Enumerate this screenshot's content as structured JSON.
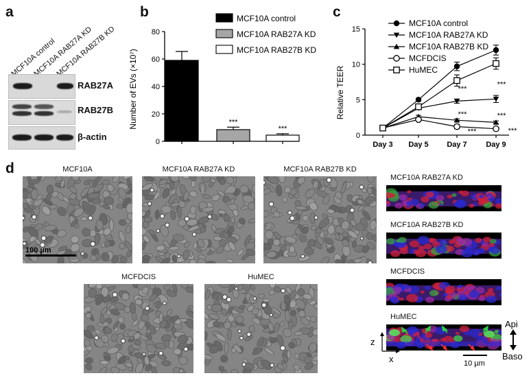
{
  "panels": {
    "a": "a",
    "b": "b",
    "c": "c",
    "d": "d"
  },
  "panel_a": {
    "lanes": [
      "MCF10A control",
      "MCF10A RAB27A KD",
      "MCF10A RAB27B KD"
    ],
    "blots": [
      "RAB27A",
      "RAB27B",
      "β-actin"
    ]
  },
  "panel_b": {
    "legend": [
      "MCF10A control",
      "MCF10A RAB27A KD",
      "MCF10A RAB27B KD"
    ],
    "ylabel": "Number of EVs (×10⁷)",
    "yticks": [
      "0",
      "20",
      "40",
      "60",
      "80"
    ],
    "sig": [
      "***",
      "***"
    ],
    "colors": [
      "#000000",
      "#a6a6a6",
      "#ffffff"
    ]
  },
  "panel_c": {
    "legend": [
      "MCF10A control",
      "MCF10A RAB27A KD",
      "MCF10A RAB27B KD",
      "MCFDCIS",
      "HuMEC"
    ],
    "ylabel": "Relative TEER",
    "yticks": [
      "0",
      "5",
      "10",
      "15"
    ],
    "sig": [
      "***",
      "***",
      "***",
      "***",
      "***",
      "***"
    ]
  },
  "chart_data": [
    {
      "type": "bar",
      "categories": [
        "MCF10A control",
        "MCF10A RAB27A KD",
        "MCF10A RAB27B KD"
      ],
      "values": [
        59,
        8.5,
        4.5
      ],
      "errors": [
        6.5,
        1.8,
        1.0
      ],
      "ylabel": "Number of EVs (×10⁷)",
      "ylim": [
        0,
        80
      ],
      "legend": "top-right"
    },
    {
      "type": "line",
      "categories": [
        "Day 3",
        "Day 5",
        "Day 7",
        "Day 9"
      ],
      "series": [
        {
          "name": "MCF10A control",
          "values": [
            1.0,
            5.0,
            9.7,
            12.0
          ],
          "errors": [
            0.1,
            0.2,
            0.6,
            0.7
          ],
          "marker": "circle-filled"
        },
        {
          "name": "MCF10A RAB27A KD",
          "values": [
            1.0,
            3.8,
            4.8,
            5.1
          ],
          "errors": [
            0.1,
            0.2,
            0.3,
            0.5
          ],
          "marker": "triangle-down"
        },
        {
          "name": "MCF10A RAB27B KD",
          "values": [
            1.0,
            2.6,
            2.1,
            1.8
          ],
          "errors": [
            0.1,
            0.2,
            0.2,
            0.2
          ],
          "marker": "triangle-up"
        },
        {
          "name": "MCFDCIS",
          "values": [
            1.0,
            2.2,
            1.2,
            0.9
          ],
          "errors": [
            0.1,
            0.2,
            0.3,
            0.2
          ],
          "marker": "circle-open"
        },
        {
          "name": "HuMEC",
          "values": [
            1.0,
            4.0,
            7.7,
            10.1
          ],
          "errors": [
            0.1,
            0.3,
            0.8,
            0.8
          ],
          "marker": "square-open"
        }
      ],
      "ylabel": "Relative TEER",
      "ylim": [
        0,
        15
      ],
      "legend": "top-left"
    }
  ],
  "panel_d": {
    "micrographs": [
      "MCF10A",
      "MCF10A RAB27A KD",
      "MCF10A RAB27B KD",
      "MCFDCIS",
      "HuMEC"
    ],
    "scalebar": "100 µm",
    "confocal": [
      "MCF10A RAB27A KD",
      "MCF10A RAB27B KD",
      "MCFDCIS",
      "HuMEC"
    ],
    "axis_z": "z",
    "axis_x": "x",
    "api": "Api",
    "baso": "Baso",
    "confocal_scale": "10 µm"
  }
}
